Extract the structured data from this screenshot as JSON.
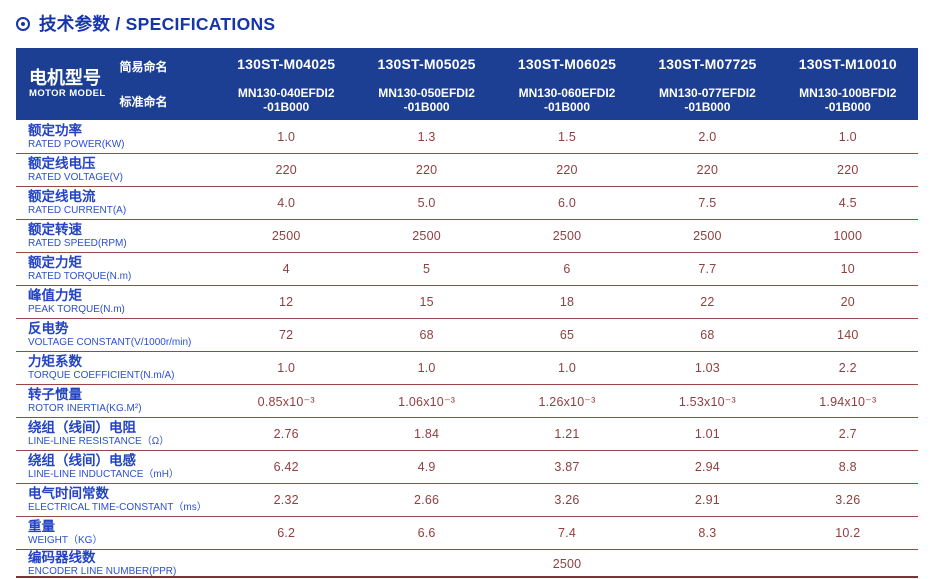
{
  "page": {
    "title": "技术参数 / SPECIFICATIONS"
  },
  "colors": {
    "header_bg": "#1c3f94",
    "title_blue": "#1535a8",
    "label_blue": "#2343c5",
    "value_maroon": "#8f3f3f",
    "row_line": "#9c4747"
  },
  "table": {
    "model_header": {
      "title_zh": "电机型号",
      "title_en": "MOTOR MODEL",
      "simple_label": "简易命名",
      "standard_label": "标准命名"
    },
    "columns": [
      {
        "simple": "130ST-M04025",
        "standard_line1": "MN130-040EFDI2",
        "standard_line2": "-01B000"
      },
      {
        "simple": "130ST-M05025",
        "standard_line1": "MN130-050EFDI2",
        "standard_line2": "-01B000"
      },
      {
        "simple": "130ST-M06025",
        "standard_line1": "MN130-060EFDI2",
        "standard_line2": "-01B000"
      },
      {
        "simple": "130ST-M07725",
        "standard_line1": "MN130-077EFDI2",
        "standard_line2": "-01B000"
      },
      {
        "simple": "130ST-M10010",
        "standard_line1": "MN130-100BFDI2",
        "standard_line2": "-01B000"
      }
    ],
    "rows": [
      {
        "zh": "额定功率",
        "en": "RATED POWER(KW)",
        "values": [
          "1.0",
          "1.3",
          "1.5",
          "2.0",
          "1.0"
        ]
      },
      {
        "zh": "额定线电压",
        "en": "RATED VOLTAGE(V)",
        "values": [
          "220",
          "220",
          "220",
          "220",
          "220"
        ]
      },
      {
        "zh": "额定线电流",
        "en": "RATED CURRENT(A)",
        "values": [
          "4.0",
          "5.0",
          "6.0",
          "7.5",
          "4.5"
        ]
      },
      {
        "zh": "额定转速",
        "en": "RATED SPEED(RPM)",
        "values": [
          "2500",
          "2500",
          "2500",
          "2500",
          "1000"
        ]
      },
      {
        "zh": "额定力矩",
        "en": "RATED TORQUE(N.m)",
        "values": [
          "4",
          "5",
          "6",
          "7.7",
          "10"
        ]
      },
      {
        "zh": "峰值力矩",
        "en": "PEAK TORQUE(N.m)",
        "values": [
          "12",
          "15",
          "18",
          "22",
          "20"
        ]
      },
      {
        "zh": "反电势",
        "en": "VOLTAGE CONSTANT(V/1000r/min)",
        "values": [
          "72",
          "68",
          "65",
          "68",
          "140"
        ]
      },
      {
        "zh": "力矩系数",
        "en": "TORQUE COEFFICIENT(N.m/A)",
        "values": [
          "1.0",
          "1.0",
          "1.0",
          "1.03",
          "2.2"
        ]
      },
      {
        "zh": "转子惯量",
        "en": "ROTOR INERTIA(KG.M²)",
        "values": [
          "0.85x10⁻³",
          "1.06x10⁻³",
          "1.26x10⁻³",
          "1.53x10⁻³",
          "1.94x10⁻³"
        ]
      },
      {
        "zh": "绕组（线间）电阻",
        "en": "LINE-LINE RESISTANCE（Ω）",
        "values": [
          "2.76",
          "1.84",
          "1.21",
          "1.01",
          "2.7"
        ]
      },
      {
        "zh": "绕组（线间）电感",
        "en": "LINE-LINE INDUCTANCE（mH）",
        "values": [
          "6.42",
          "4.9",
          "3.87",
          "2.94",
          "8.8"
        ]
      },
      {
        "zh": "电气时间常数",
        "en": "ELECTRICAL TIME-CONSTANT（ms）",
        "values": [
          "2.32",
          "2.66",
          "3.26",
          "2.91",
          "3.26"
        ]
      },
      {
        "zh": "重量",
        "en": "WEIGHT（KG）",
        "values": [
          "6.2",
          "6.6",
          "7.4",
          "8.3",
          "10.2"
        ]
      }
    ],
    "encoder_row": {
      "zh": "编码器线数",
      "en": "ENCODER LINE NUMBER(PPR)",
      "value": "2500"
    }
  }
}
